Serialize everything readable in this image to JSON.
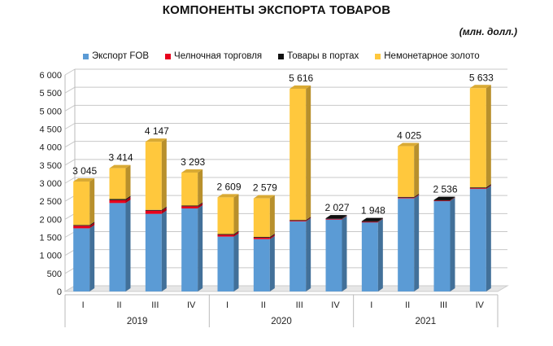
{
  "title": "КОМПОНЕНТЫ ЭКСПОРТА ТОВАРОВ",
  "units": "(млн. долл.)",
  "chart_data": {
    "type": "bar",
    "stacked": true,
    "title": "КОМПОНЕНТЫ ЭКСПОРТА ТОВАРОВ",
    "ylabel": "",
    "xlabel": "",
    "ylim": [
      0,
      6000
    ],
    "yticks": [
      0,
      500,
      1000,
      1500,
      2000,
      2500,
      3000,
      3500,
      4000,
      4500,
      5000,
      5500,
      6000
    ],
    "ytick_labels": [
      "0",
      "500",
      "1 000",
      "1 500",
      "2 000",
      "2 500",
      "3 000",
      "3 500",
      "4 000",
      "4 500",
      "5 000",
      "5 500",
      "6 000"
    ],
    "grid": true,
    "legend_position": "top",
    "categories": [
      "I",
      "II",
      "III",
      "IV",
      "I",
      "II",
      "III",
      "IV",
      "I",
      "II",
      "III",
      "IV"
    ],
    "groups": [
      {
        "label": "2019",
        "count": 4
      },
      {
        "label": "2020",
        "count": 4
      },
      {
        "label": "2021",
        "count": 4
      }
    ],
    "series": [
      {
        "name": "Экспорт FOB",
        "color": "#5b9bd5",
        "values": [
          1750,
          2450,
          2150,
          2300,
          1520,
          1450,
          1940,
          2000,
          1920,
          2580,
          2510,
          2840
        ]
      },
      {
        "name": "Челночная торговля",
        "color": "#e8001c",
        "values": [
          70,
          80,
          90,
          60,
          50,
          40,
          20,
          10,
          10,
          20,
          10,
          20
        ]
      },
      {
        "name": "Товары в портах",
        "color": "#111111",
        "values": [
          20,
          30,
          20,
          20,
          20,
          20,
          20,
          17,
          18,
          20,
          16,
          23
        ]
      },
      {
        "name": "Немонетарное золото",
        "color": "#ffc83d",
        "values": [
          1205,
          854,
          1887,
          913,
          1019,
          1069,
          3636,
          0,
          0,
          1405,
          0,
          2750
        ]
      }
    ],
    "totals": [
      3045,
      3414,
      4147,
      3293,
      2609,
      2579,
      5616,
      2027,
      1948,
      4025,
      2536,
      5633
    ],
    "total_labels": [
      "3 045",
      "3 414",
      "4 147",
      "3 293",
      "2 609",
      "2 579",
      "5 616",
      "2 027",
      "1 948",
      "4 025",
      "2 536",
      "5 633"
    ]
  }
}
